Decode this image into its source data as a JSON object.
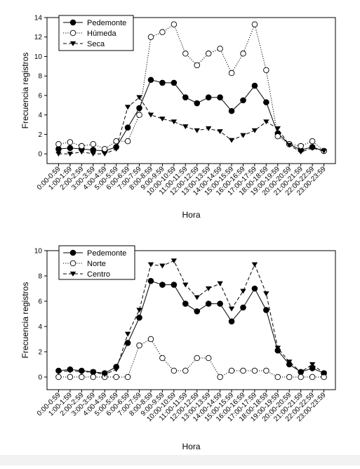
{
  "chart_data": [
    {
      "type": "line",
      "xlabel": "Hora",
      "ylabel": "Frecuencia registros",
      "ylim": [
        -1,
        14
      ],
      "yticks": [
        0,
        2,
        4,
        6,
        8,
        10,
        12,
        14
      ],
      "categories": [
        "0:00-0:59",
        "1:00-1:59",
        "2:00-2:59",
        "3:00-3:59",
        "4:00-4:59",
        "5:00-5:59",
        "6:00-6:59",
        "7:00-7:59",
        "8:00-8:59",
        "9:00-9:59",
        "10:00-10:59",
        "11:00-11:59",
        "12:00-12:59",
        "13:00-13:59",
        "14:00-14:59",
        "15:00-15:59",
        "16:00-16:59",
        "17:00-17:59",
        "18:00-18:59",
        "19:00-19:59",
        "20:00-20:59",
        "21:00-21:59",
        "22:00-22:59",
        "23:00-23:59"
      ],
      "legend_position": "top-left",
      "series": [
        {
          "name": "Pedemonte",
          "marker": "circle-filled",
          "line": "solid",
          "color": "#000000",
          "values": [
            0.5,
            0.6,
            0.5,
            0.4,
            0.3,
            0.7,
            2.7,
            4.7,
            7.6,
            7.3,
            7.3,
            5.8,
            5.2,
            5.8,
            5.8,
            4.4,
            5.5,
            7.0,
            5.3,
            2.1,
            1.0,
            0.4,
            0.7,
            0.3
          ]
        },
        {
          "name": "Húmeda",
          "marker": "circle-open",
          "line": "dotted",
          "color": "#000000",
          "values": [
            1.0,
            1.2,
            0.8,
            1.0,
            0.5,
            1.3,
            1.3,
            4.0,
            12.0,
            12.5,
            13.3,
            10.3,
            9.1,
            10.3,
            10.8,
            8.3,
            10.3,
            13.3,
            8.6,
            1.8,
            1.0,
            0.8,
            1.3,
            0.3
          ]
        },
        {
          "name": "Seca",
          "marker": "triangle-down",
          "line": "dashed",
          "color": "#000000",
          "values": [
            0.0,
            0.0,
            0.2,
            0.0,
            0.0,
            0.5,
            4.8,
            5.8,
            4.0,
            3.6,
            3.3,
            2.8,
            2.4,
            2.6,
            2.3,
            1.4,
            1.9,
            2.4,
            3.3,
            2.6,
            0.9,
            0.2,
            0.6,
            0.3
          ]
        }
      ]
    },
    {
      "type": "line",
      "xlabel": "Hora",
      "ylabel": "Frecuencia registros",
      "ylim": [
        -1,
        10
      ],
      "yticks": [
        0,
        2,
        4,
        6,
        8,
        10
      ],
      "categories": [
        "0:00-0:59",
        "1:00-1:59",
        "2:00-2:59",
        "3:00-3:59",
        "4:00-4:59",
        "5:00-5:59",
        "6:00-6:59",
        "7:00-7:59",
        "8:00-8:59",
        "9:00-9:59",
        "10:00-10:59",
        "11:00-11:59",
        "12:00-12:59",
        "13:00-13:59",
        "14:00-14:59",
        "15:00-15:59",
        "16:00-16:59",
        "17:00-17:59",
        "18:00-18:59",
        "19:00-19:59",
        "20:00-20:59",
        "21:00-21:59",
        "22:00-22:59",
        "23:00-23:59"
      ],
      "legend_position": "top-left",
      "series": [
        {
          "name": "Pedemonte",
          "marker": "circle-filled",
          "line": "solid",
          "color": "#000000",
          "values": [
            0.5,
            0.6,
            0.5,
            0.4,
            0.3,
            0.8,
            2.7,
            4.7,
            7.6,
            7.3,
            7.3,
            5.8,
            5.2,
            5.8,
            5.8,
            4.4,
            5.5,
            7.0,
            5.3,
            2.1,
            1.0,
            0.4,
            0.7,
            0.3
          ]
        },
        {
          "name": "Norte",
          "marker": "circle-open",
          "line": "dotted",
          "color": "#000000",
          "values": [
            0.0,
            0.0,
            0.0,
            0.0,
            0.0,
            0.0,
            0.0,
            2.5,
            3.0,
            1.5,
            0.5,
            0.5,
            1.5,
            1.5,
            0.0,
            0.5,
            0.5,
            0.5,
            0.5,
            0.0,
            0.0,
            0.0,
            0.0,
            0.0
          ]
        },
        {
          "name": "Centro",
          "marker": "triangle-down",
          "line": "dashed",
          "color": "#000000",
          "values": [
            0.4,
            0.5,
            0.4,
            0.4,
            0.2,
            0.6,
            3.4,
            5.3,
            8.9,
            8.8,
            9.2,
            7.3,
            6.3,
            7.0,
            7.4,
            5.4,
            6.8,
            8.9,
            6.6,
            2.3,
            1.2,
            0.4,
            1.0,
            0.3
          ]
        }
      ]
    }
  ]
}
